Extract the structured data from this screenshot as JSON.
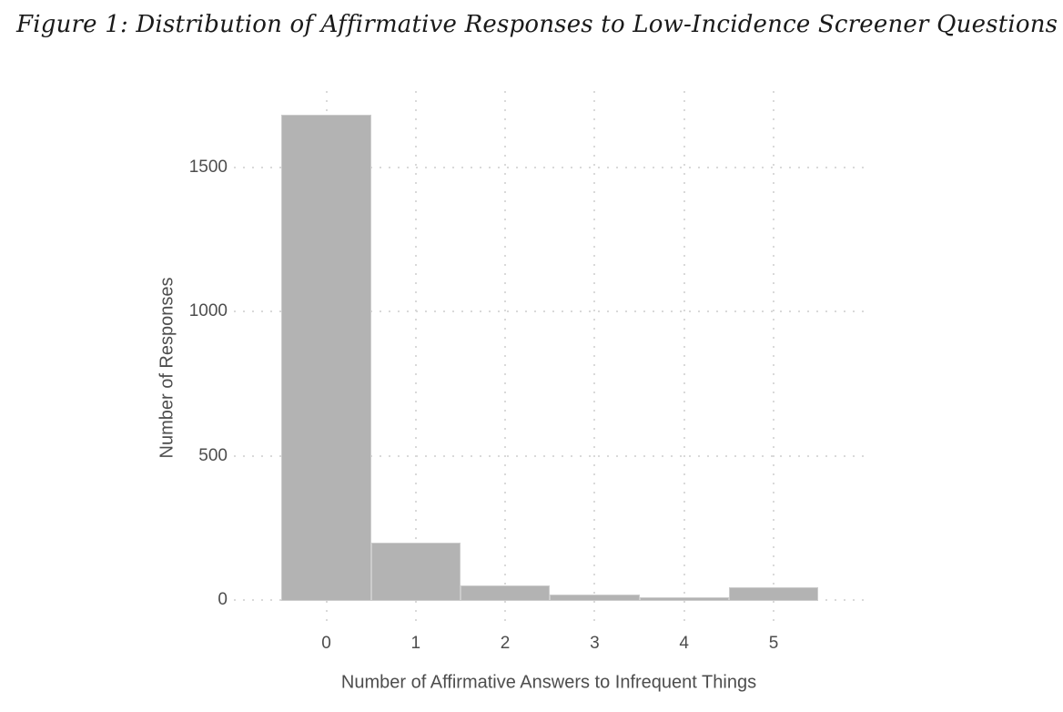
{
  "figure": {
    "caption": "Figure 1: Distribution of Affirmative Responses to Low-Incidence Screener Questions"
  },
  "chart_data": {
    "type": "bar",
    "subtype": "histogram",
    "title": "Figure 1: Distribution of Affirmative Responses to Low-Incidence Screener Questions",
    "categories": [
      0,
      1,
      2,
      3,
      4,
      5
    ],
    "values": [
      1680,
      200,
      50,
      20,
      10,
      45
    ],
    "xlabel": "Number of Affirmative Answers to Infrequent Things",
    "ylabel": "Number of Responses",
    "x_tick_labels": [
      "0",
      "1",
      "2",
      "3",
      "4",
      "5"
    ],
    "y_ticks": [
      0,
      500,
      1000,
      1500
    ],
    "ylim": [
      0,
      1760
    ],
    "xlim": [
      -0.55,
      5.55
    ],
    "bin_width": 1,
    "grid": "dotted",
    "legend_position": "none",
    "style": {
      "bar_fill": "#b3b3b3",
      "bar_border": "#cccccc",
      "grid_color": "#d9d9d9",
      "axis_text_color": "#4d4d4d",
      "title_color": "#1a1a1a",
      "background": "#ffffff"
    }
  }
}
